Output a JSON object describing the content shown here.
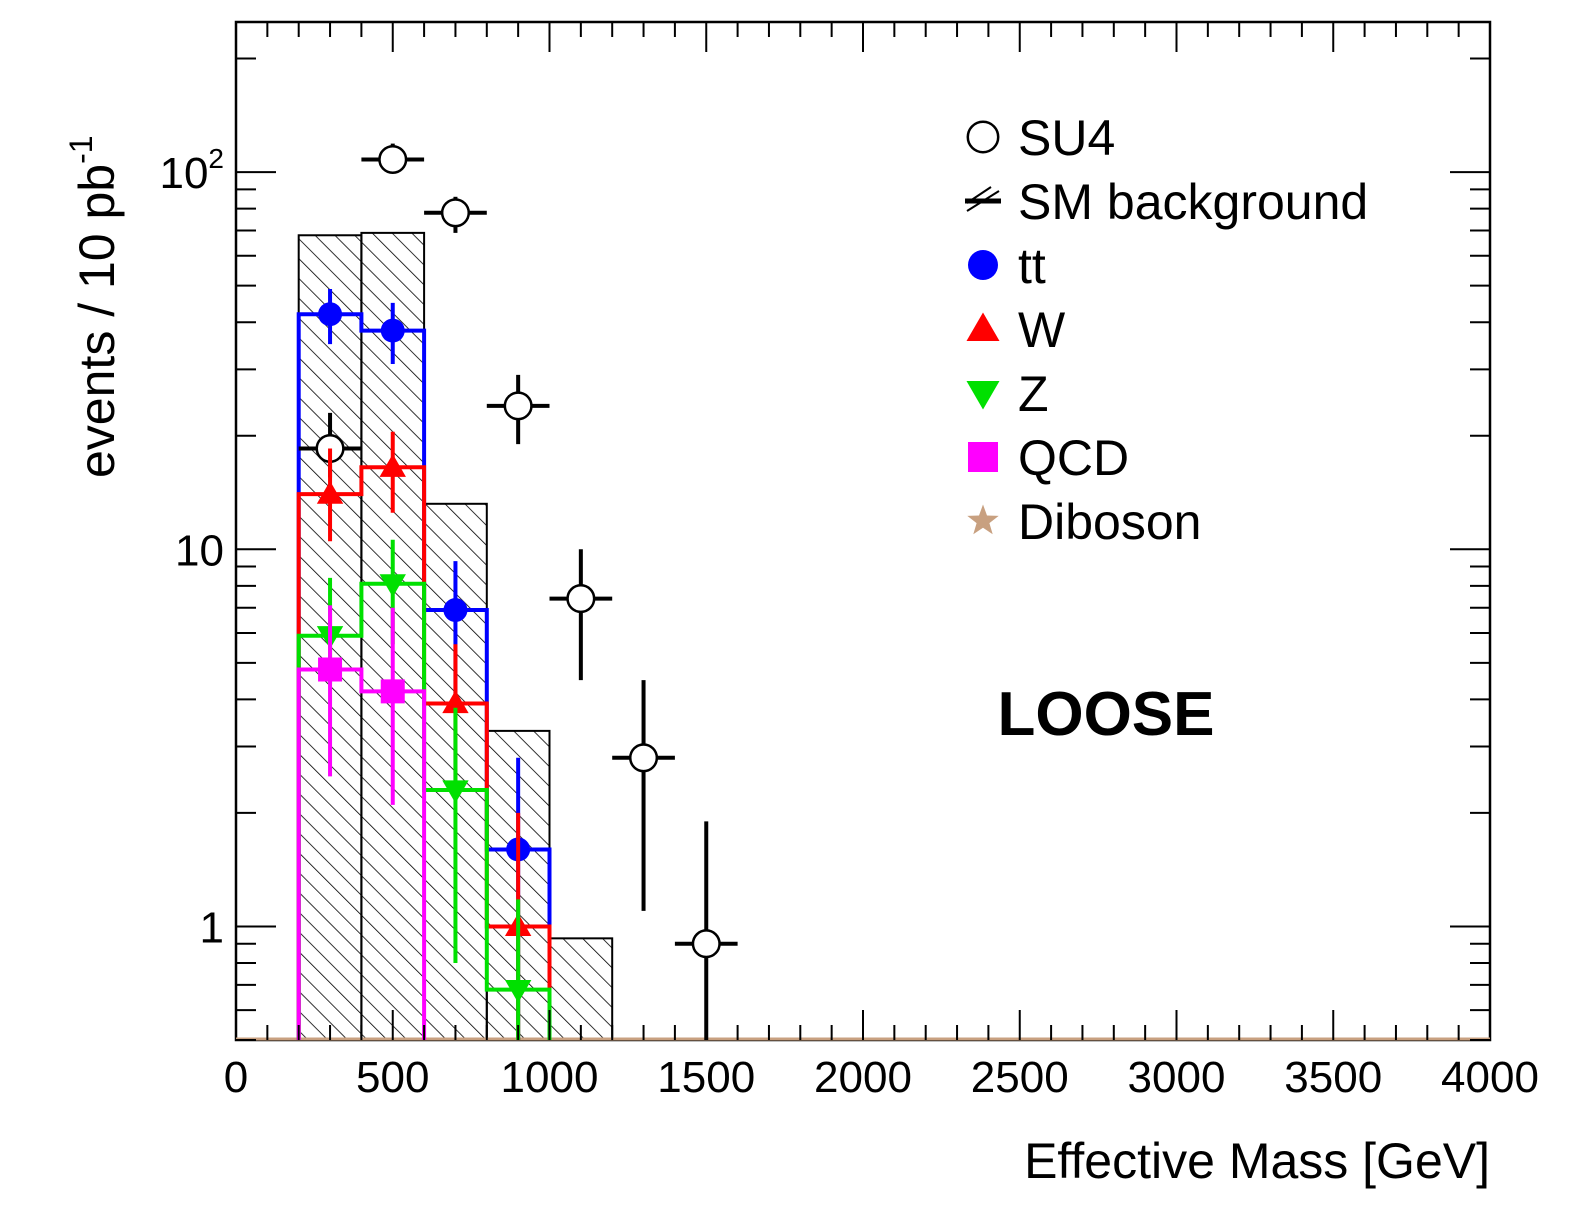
{
  "chart_data": {
    "type": "histogram",
    "xlabel": "Effective Mass [GeV]",
    "ylabel": "events / 10 pb",
    "ylabel_sup": "-1",
    "xlim": [
      0,
      4000
    ],
    "ylim": [
      0.5,
      250
    ],
    "yscale": "log",
    "x_ticks": [
      0,
      500,
      1000,
      1500,
      2000,
      2500,
      3000,
      3500,
      4000
    ],
    "y_ticks": [
      {
        "value": 1,
        "label": "1",
        "sup": ""
      },
      {
        "value": 10,
        "label": "10",
        "sup": ""
      },
      {
        "value": 100,
        "label": "10",
        "sup": "2"
      }
    ],
    "annotation": "LOOSE",
    "legend_position": "top-right",
    "bin_edges": [
      200,
      400,
      600,
      800,
      1000,
      1200
    ],
    "series": [
      {
        "name": "SU4",
        "kind": "points",
        "marker": "open-circle",
        "color": "#000000",
        "x": [
          300,
          500,
          700,
          900,
          1100,
          1300,
          1500
        ],
        "y": [
          18.5,
          108,
          78,
          24,
          7.4,
          2.8,
          0.9
        ],
        "err_lo": [
          3,
          8,
          9,
          5,
          2.9,
          1.7,
          0.5
        ],
        "err_hi": [
          4.5,
          11,
          8,
          5,
          2.6,
          1.7,
          1
        ]
      },
      {
        "name": "SM background",
        "kind": "hatched-hist",
        "color": "#000000",
        "values": [
          68,
          69,
          13.2,
          3.3,
          0.93
        ]
      },
      {
        "name": "tt",
        "kind": "hist+points",
        "marker": "filled-circle",
        "color": "#0000ff",
        "x": [
          300,
          500,
          700,
          900
        ],
        "values": [
          42,
          38,
          6.9,
          1.6
        ],
        "err_lo": [
          7,
          7,
          2.9,
          1.6
        ],
        "err_hi": [
          7,
          7,
          2.4,
          1.2
        ]
      },
      {
        "name": "W",
        "kind": "hist+points",
        "marker": "triangle-up",
        "color": "#ff0000",
        "x": [
          300,
          500,
          700,
          900
        ],
        "values": [
          14,
          16.5,
          3.9,
          1.0
        ],
        "err_lo": [
          3.5,
          4,
          1.6,
          0.5
        ],
        "err_hi": [
          4.5,
          4,
          1.7,
          1
        ]
      },
      {
        "name": "Z",
        "kind": "hist+points",
        "marker": "triangle-down",
        "color": "#00e000",
        "x": [
          300,
          500,
          700,
          900
        ],
        "values": [
          5.9,
          8.1,
          2.3,
          0.68
        ],
        "err_lo": [
          1.5,
          2.5,
          1.5,
          0.4
        ],
        "err_hi": [
          2.5,
          2.5,
          1.5,
          0.5
        ]
      },
      {
        "name": "QCD",
        "kind": "hist+points",
        "marker": "filled-square",
        "color": "#ff00ff",
        "x": [
          300,
          500
        ],
        "values": [
          4.8,
          4.2
        ],
        "err_lo": [
          2.3,
          2.1
        ],
        "err_hi": [
          2.3,
          2.8
        ]
      },
      {
        "name": "Diboson",
        "kind": "hist",
        "marker": "star",
        "color": "#c8a080",
        "values": []
      }
    ]
  }
}
